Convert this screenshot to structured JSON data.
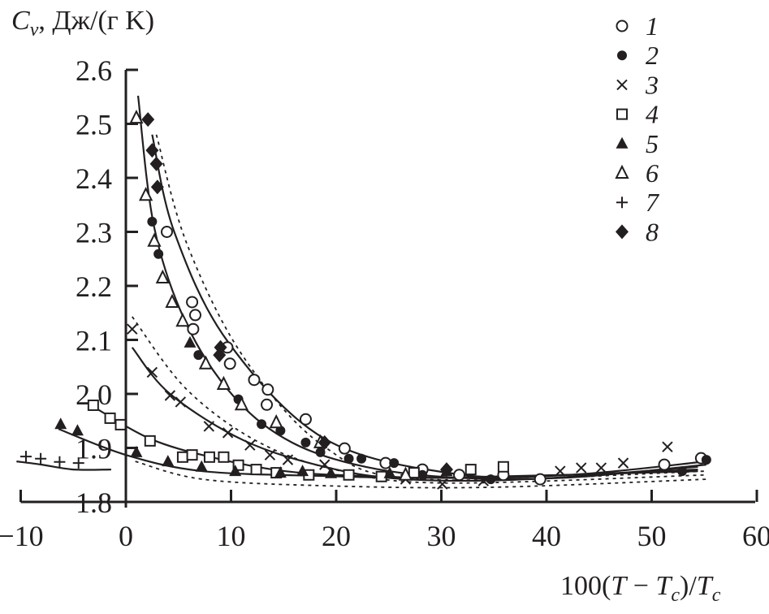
{
  "chart_data": {
    "type": "scatter",
    "title": "",
    "ylabel_main": "C",
    "ylabel_sub": "v",
    "ylabel_rest": ", Дж/(г K)",
    "xlabel_parts": [
      "100(",
      "T",
      " − ",
      "T",
      "c",
      ")/",
      "T",
      "c"
    ],
    "xlim": [
      -10,
      60
    ],
    "ylim": [
      1.8,
      2.6
    ],
    "xticks": [
      -10,
      0,
      10,
      20,
      30,
      40,
      50,
      60
    ],
    "xtick_labels": [
      "−10",
      "0",
      "10",
      "20",
      "30",
      "40",
      "50",
      "60"
    ],
    "yticks": [
      1.8,
      1.9,
      2.0,
      2.1,
      2.2,
      2.3,
      2.4,
      2.5,
      2.6
    ],
    "ytick_labels": [
      "1.8",
      "1.9",
      "2.0",
      "2.1",
      "2.2",
      "2.3",
      "2.4",
      "2.5",
      "2.6"
    ],
    "grid": false,
    "legend_position": "top-right",
    "color": "#231f20",
    "series": [
      {
        "name": "1",
        "marker": "open-circle",
        "points": [
          [
            3.9,
            2.3
          ],
          [
            6.3,
            2.17
          ],
          [
            6.6,
            2.146
          ],
          [
            6.4,
            2.12
          ],
          [
            9.65,
            2.086
          ],
          [
            9.9,
            2.056
          ],
          [
            12.2,
            2.026
          ],
          [
            13.5,
            2.008
          ],
          [
            13.4,
            1.98
          ],
          [
            17.1,
            1.953
          ],
          [
            20.8,
            1.899
          ],
          [
            24.7,
            1.872
          ],
          [
            28.2,
            1.86
          ],
          [
            31.7,
            1.85
          ],
          [
            35.9,
            1.85
          ],
          [
            39.4,
            1.842
          ],
          [
            51.2,
            1.869
          ],
          [
            54.7,
            1.881
          ]
        ]
      },
      {
        "name": "2",
        "marker": "filled-circle",
        "points": [
          [
            2.5,
            2.319
          ],
          [
            3.1,
            2.259
          ],
          [
            6.9,
            2.072
          ],
          [
            10.7,
            1.99
          ],
          [
            12.9,
            1.944
          ],
          [
            14.7,
            1.932
          ],
          [
            17.1,
            1.91
          ],
          [
            18.5,
            1.892
          ],
          [
            21.2,
            1.88
          ],
          [
            22.4,
            1.88
          ],
          [
            25.5,
            1.872
          ],
          [
            28.2,
            1.85
          ],
          [
            34.7,
            1.842
          ],
          [
            52.9,
            1.857
          ],
          [
            55.2,
            1.878
          ]
        ]
      },
      {
        "name": "3",
        "marker": "cross",
        "points": [
          [
            0.6,
            2.12
          ],
          [
            2.5,
            2.04
          ],
          [
            4.2,
            1.997
          ],
          [
            5.2,
            1.985
          ],
          [
            7.9,
            1.94
          ],
          [
            9.7,
            1.928
          ],
          [
            11.8,
            1.905
          ],
          [
            13.7,
            1.887
          ],
          [
            15.4,
            1.878
          ],
          [
            18.9,
            1.869
          ],
          [
            26.6,
            1.842
          ],
          [
            30.1,
            1.833
          ],
          [
            34.0,
            1.839
          ],
          [
            41.3,
            1.857
          ],
          [
            43.3,
            1.863
          ],
          [
            45.2,
            1.863
          ],
          [
            47.3,
            1.872
          ],
          [
            51.5,
            1.902
          ]
        ]
      },
      {
        "name": "4",
        "marker": "open-square",
        "points": [
          [
            -3.1,
            1.979
          ],
          [
            -1.5,
            1.955
          ],
          [
            -0.5,
            1.943
          ],
          [
            2.3,
            1.913
          ],
          [
            5.4,
            1.883
          ],
          [
            6.3,
            1.887
          ],
          [
            7.95,
            1.883
          ],
          [
            9.3,
            1.883
          ],
          [
            10.7,
            1.868
          ],
          [
            12.4,
            1.86
          ],
          [
            14.3,
            1.854
          ],
          [
            17.4,
            1.85
          ],
          [
            21.2,
            1.85
          ],
          [
            24.3,
            1.847
          ],
          [
            27.4,
            1.854
          ],
          [
            32.8,
            1.86
          ],
          [
            35.9,
            1.865
          ]
        ]
      },
      {
        "name": "5",
        "marker": "filled-triangle",
        "points": [
          [
            -6.2,
            1.944
          ],
          [
            -4.6,
            1.932
          ],
          [
            1.0,
            1.892
          ],
          [
            4.0,
            1.875
          ],
          [
            6.1,
            2.095
          ],
          [
            7.2,
            1.865
          ],
          [
            10.4,
            1.857
          ],
          [
            14.7,
            1.854
          ],
          [
            16.8,
            1.857
          ],
          [
            19.5,
            1.853
          ],
          [
            25.1,
            1.853
          ],
          [
            30.5,
            1.857
          ]
        ]
      },
      {
        "name": "6",
        "marker": "open-triangle",
        "points": [
          [
            1.0,
            2.511
          ],
          [
            1.9,
            2.368
          ],
          [
            2.7,
            2.283
          ],
          [
            3.5,
            2.215
          ],
          [
            4.4,
            2.17
          ],
          [
            5.4,
            2.135
          ],
          [
            7.6,
            2.056
          ],
          [
            9.3,
            2.018
          ],
          [
            11.0,
            1.98
          ],
          [
            14.3,
            1.947
          ],
          [
            18.5,
            1.91
          ],
          [
            26.6,
            1.85
          ]
        ]
      },
      {
        "name": "7",
        "marker": "plus",
        "points": [
          [
            -9.5,
            1.884
          ],
          [
            -8.1,
            1.88
          ],
          [
            -6.3,
            1.874
          ],
          [
            -4.5,
            1.872
          ]
        ]
      },
      {
        "name": "8",
        "marker": "filled-diamond",
        "points": [
          [
            2.1,
            2.508
          ],
          [
            2.5,
            2.451
          ],
          [
            2.9,
            2.426
          ],
          [
            3.0,
            2.383
          ],
          [
            9.0,
            2.086
          ],
          [
            8.9,
            2.072
          ],
          [
            18.9,
            1.91
          ],
          [
            30.5,
            1.86
          ]
        ]
      }
    ],
    "fit_curves": [
      {
        "style": "solid",
        "points": [
          [
            2.5,
            2.48
          ],
          [
            4.6,
            2.3
          ],
          [
            9.65,
            2.098
          ],
          [
            18.9,
            1.917
          ],
          [
            31.3,
            1.852
          ],
          [
            42.1,
            1.85
          ],
          [
            55.2,
            1.875
          ]
        ]
      },
      {
        "style": "solid",
        "points": [
          [
            1.16,
            2.552
          ],
          [
            2.7,
            2.308
          ],
          [
            5.8,
            2.128
          ],
          [
            10.4,
            1.992
          ],
          [
            15.8,
            1.91
          ],
          [
            22.8,
            1.865
          ],
          [
            31.3,
            1.845
          ],
          [
            42.1,
            1.845
          ],
          [
            55.2,
            1.869
          ]
        ]
      },
      {
        "style": "solid",
        "points": [
          [
            0.6,
            2.086
          ],
          [
            4.2,
            2.0
          ],
          [
            11.2,
            1.914
          ],
          [
            18.9,
            1.865
          ],
          [
            26.6,
            1.842
          ],
          [
            38.2,
            1.842
          ],
          [
            54.4,
            1.865
          ]
        ]
      },
      {
        "style": "solid",
        "points": [
          [
            -2.9,
            1.974
          ],
          [
            2.3,
            1.917
          ],
          [
            8.1,
            1.883
          ],
          [
            15.1,
            1.857
          ],
          [
            22.8,
            1.848
          ],
          [
            34.4,
            1.845
          ],
          [
            54.4,
            1.86
          ]
        ]
      },
      {
        "style": "solid",
        "points": [
          [
            -6.4,
            1.935
          ],
          [
            0,
            1.887
          ],
          [
            7.3,
            1.857
          ],
          [
            18.9,
            1.848
          ],
          [
            30.5,
            1.845
          ],
          [
            54.4,
            1.857
          ]
        ]
      },
      {
        "style": "solid",
        "points": [
          [
            -10.4,
            1.875
          ],
          [
            -8,
            1.869
          ],
          [
            -5,
            1.86
          ],
          [
            -1.4,
            1.86
          ]
        ]
      },
      {
        "style": "dotted",
        "points": [
          [
            2.9,
            2.48
          ],
          [
            5.8,
            2.278
          ],
          [
            11.2,
            2.068
          ],
          [
            18.9,
            1.902
          ],
          [
            28.2,
            1.842
          ],
          [
            55.2,
            1.857
          ]
        ]
      },
      {
        "style": "dotted",
        "points": [
          [
            0.6,
            2.143
          ],
          [
            5.8,
            2.008
          ],
          [
            12.7,
            1.91
          ],
          [
            20.5,
            1.857
          ],
          [
            30.5,
            1.835
          ],
          [
            55.2,
            1.85
          ]
        ]
      },
      {
        "style": "dotted",
        "points": [
          [
            0.9,
            1.875
          ],
          [
            7.3,
            1.842
          ],
          [
            18.9,
            1.83
          ],
          [
            34.4,
            1.827
          ],
          [
            55.2,
            1.842
          ]
        ]
      }
    ]
  }
}
